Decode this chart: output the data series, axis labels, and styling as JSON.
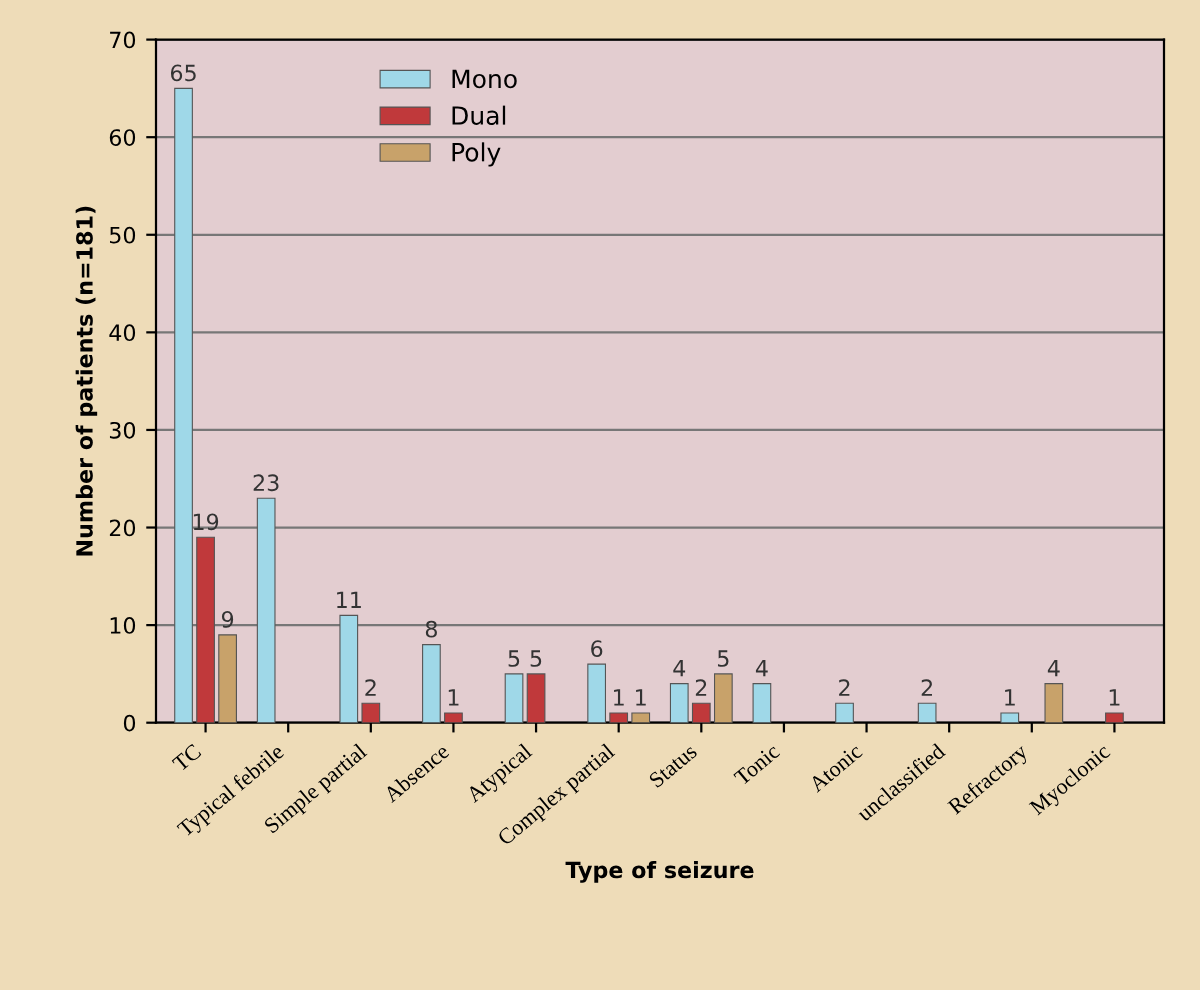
{
  "chart_data": {
    "type": "bar",
    "xlabel": "Type of seizure",
    "ylabel": "Number of patients (n=181)",
    "categories": [
      "TC",
      "Typical febrile",
      "Simple partial",
      "Absence",
      "Atypical",
      "Complex partial",
      "Status",
      "Tonic",
      "Atonic",
      "unclassified",
      "Refractory",
      "Myoclonic"
    ],
    "series": [
      {
        "name": "Mono",
        "color": "#9fd8e8",
        "values": [
          65,
          23,
          11,
          8,
          5,
          6,
          4,
          4,
          2,
          2,
          1,
          null
        ]
      },
      {
        "name": "Dual",
        "color": "#c0393b",
        "values": [
          19,
          null,
          2,
          1,
          5,
          1,
          2,
          null,
          null,
          null,
          null,
          1
        ]
      },
      {
        "name": "Poly",
        "color": "#c8a26a",
        "values": [
          9,
          null,
          null,
          null,
          null,
          1,
          5,
          null,
          null,
          null,
          4,
          null
        ]
      }
    ],
    "ylim": [
      0,
      70
    ],
    "yticks": [
      0,
      10,
      20,
      30,
      40,
      50,
      60,
      70
    ],
    "grid": "y",
    "legend": "top left",
    "data_labels": true
  }
}
